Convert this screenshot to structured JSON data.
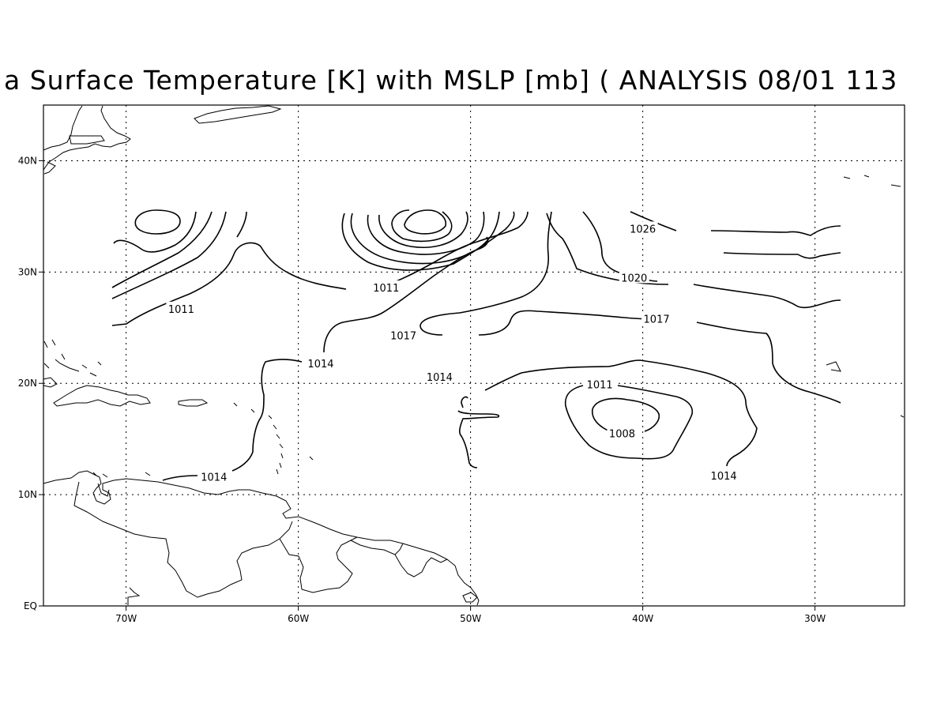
{
  "title": "a Surface Temperature [K] with MSLP [mb] ( ANALYSIS 08/01 113",
  "x_ticks": [
    {
      "lon": -70,
      "label": "70W"
    },
    {
      "lon": -60,
      "label": "60W"
    },
    {
      "lon": -50,
      "label": "50W"
    },
    {
      "lon": -40,
      "label": "40W"
    },
    {
      "lon": -30,
      "label": "30W"
    }
  ],
  "y_ticks": [
    {
      "lat": 0,
      "label": "EQ"
    },
    {
      "lat": 10,
      "label": "10N"
    },
    {
      "lat": 20,
      "label": "20N"
    },
    {
      "lat": 30,
      "label": "30N"
    },
    {
      "lat": 40,
      "label": "40N"
    }
  ],
  "map_extent": {
    "lon": [
      -74.8,
      -24.8
    ],
    "lat": [
      0,
      45
    ]
  },
  "contour_labels": [
    {
      "text": "1026",
      "lon": -40.0,
      "lat": 33.9
    },
    {
      "text": "1020",
      "lon": -40.5,
      "lat": 29.5
    },
    {
      "text": "1017",
      "lon": -39.2,
      "lat": 25.8
    },
    {
      "text": "1011",
      "lon": -54.9,
      "lat": 28.6
    },
    {
      "text": "1011",
      "lon": -66.8,
      "lat": 26.7
    },
    {
      "text": "1017",
      "lon": -53.9,
      "lat": 24.3
    },
    {
      "text": "1014",
      "lon": -58.7,
      "lat": 21.8
    },
    {
      "text": "1014",
      "lon": -51.8,
      "lat": 20.6
    },
    {
      "text": "1011",
      "lon": -42.5,
      "lat": 19.9
    },
    {
      "text": "1008",
      "lon": -41.2,
      "lat": 15.5
    },
    {
      "text": "1014",
      "lon": -35.3,
      "lat": 11.7
    },
    {
      "text": "1014",
      "lon": -64.9,
      "lat": 11.6
    }
  ]
}
